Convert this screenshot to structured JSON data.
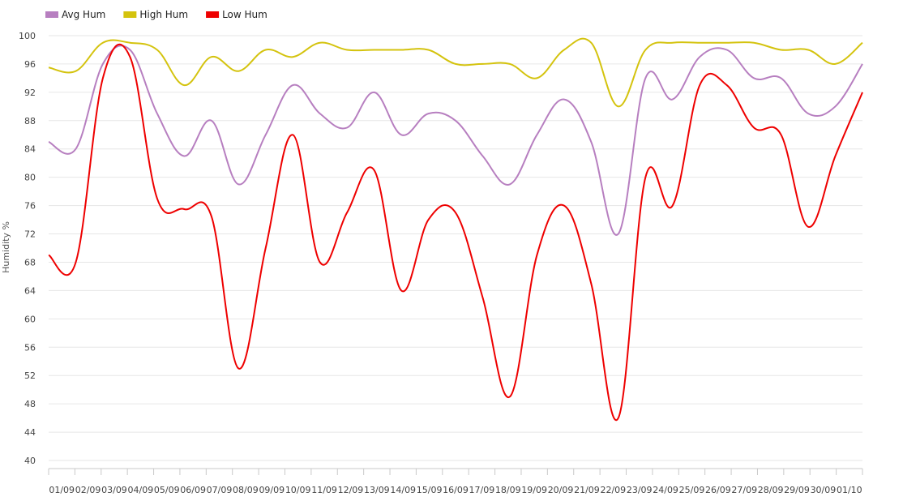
{
  "chart_data": {
    "type": "line",
    "title": "",
    "xlabel": "",
    "ylabel": "Humidity %",
    "ylim": [
      40,
      100
    ],
    "y_ticks": [
      "100",
      "96",
      "92",
      "88",
      "84",
      "80",
      "76",
      "72",
      "68",
      "64",
      "60",
      "56",
      "52",
      "48",
      "44",
      "40"
    ],
    "grid": true,
    "legend_position": "top-left",
    "categories": [
      "09/01",
      "09/02",
      "09/03",
      "09/04",
      "09/05",
      "09/06",
      "09/07",
      "09/08",
      "09/09",
      "09/10",
      "09/11",
      "09/12",
      "09/13",
      "09/14",
      "09/15",
      "09/16",
      "09/17",
      "09/18",
      "09/19",
      "09/20",
      "09/21",
      "09/22",
      "09/23",
      "09/24",
      "09/25",
      "09/26",
      "09/27",
      "09/28",
      "09/29",
      "09/30",
      "10/01"
    ],
    "x_tick_labels": [
      "01/09",
      "02/09",
      "03/09",
      "04/09",
      "05/09",
      "06/09",
      "07/09",
      "08/09",
      "09/09",
      "10/09",
      "11/09",
      "12/09",
      "13/09",
      "14/09",
      "15/09",
      "16/09",
      "17/09",
      "18/09",
      "19/09",
      "20/09",
      "21/09",
      "22/09",
      "23/09",
      "24/09",
      "25/09",
      "26/09",
      "27/09",
      "28/09",
      "29/09",
      "30/09",
      "01/10"
    ],
    "series": [
      {
        "name": "Avg Hum",
        "color": "#b77fc0",
        "values": [
          85,
          84,
          96,
          98,
          89,
          83,
          88,
          79,
          86,
          93,
          89,
          87,
          92,
          86,
          89,
          88,
          83,
          79,
          86,
          91,
          85,
          72,
          94,
          91,
          97,
          98,
          94,
          94,
          89,
          90,
          96
        ]
      },
      {
        "name": "High Hum",
        "color": "#d4c30e",
        "values": [
          95.5,
          95,
          99,
          99,
          98,
          93,
          97,
          95,
          98,
          97,
          99,
          98,
          98,
          98,
          98,
          96,
          96,
          96,
          94,
          98,
          99,
          90,
          98,
          99,
          99,
          99,
          99,
          98,
          98,
          96,
          99
        ]
      },
      {
        "name": "Low Hum",
        "color": "#ee0000",
        "values": [
          69,
          68,
          94,
          97,
          77,
          75.5,
          74.5,
          53,
          70,
          86,
          68,
          75,
          81,
          64,
          74,
          75,
          63,
          49,
          69,
          76,
          65,
          46,
          80,
          76,
          93,
          93,
          87,
          86,
          73,
          83,
          92
        ]
      }
    ]
  }
}
